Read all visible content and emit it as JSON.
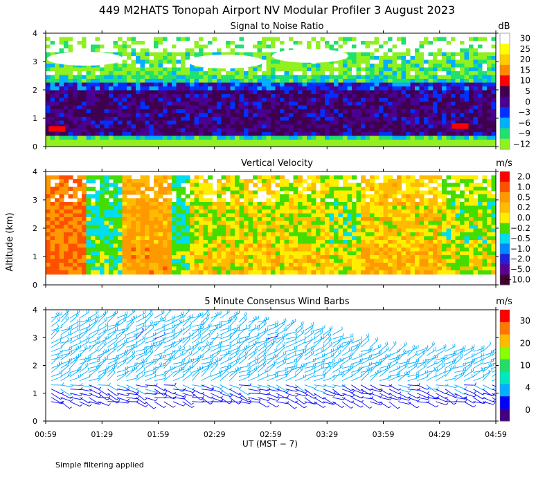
{
  "title": "449 M2HATS Tonopah Airport NV Modular Profiler  3 August 2023",
  "footnote": "Simple filtering applied",
  "shared": {
    "ylabel": "Altitude (km)",
    "xlabel": "UT  (MST − 7)",
    "xticks": [
      "00:59",
      "01:29",
      "01:59",
      "02:29",
      "02:59",
      "03:29",
      "03:59",
      "04:29",
      "04:59"
    ],
    "yticks": [
      "0",
      "1",
      "2",
      "3",
      "4"
    ],
    "xlim": [
      "00:59",
      "04:59"
    ],
    "ylim_km": [
      0,
      4
    ]
  },
  "chart_data": [
    {
      "type": "heatmap",
      "title": "Signal to Noise Ratio",
      "unit": "dB",
      "colorbar": {
        "labels": [
          "30",
          "25",
          "20",
          "15",
          "10",
          "5",
          "0",
          "−3",
          "−6",
          "−9",
          "−12"
        ],
        "colors": [
          "#ffffff",
          "#ffff00",
          "#ffcc00",
          "#ff8800",
          "#ff0000",
          "#400050",
          "#4a0090",
          "#0030ff",
          "#00b0ff",
          "#20e070",
          "#90f020"
        ]
      },
      "field": {
        "layers_km": [
          {
            "from": 0.0,
            "to": 0.25,
            "value_db": -12
          },
          {
            "from": 0.25,
            "to": 0.5,
            "value_db": -9
          },
          {
            "from": 0.5,
            "to": 2.0,
            "value_db": 3
          },
          {
            "from": 2.0,
            "to": 2.3,
            "value_db": -3
          },
          {
            "from": 2.3,
            "to": 2.6,
            "value_db": -9
          },
          {
            "from": 2.6,
            "to": 3.4,
            "value_db": -12
          },
          {
            "from": 3.4,
            "to": 4.0,
            "value_db": 30
          }
        ],
        "cloud_patches_km": [
          {
            "t": "01:20",
            "z": 3.1,
            "value_db": 30
          },
          {
            "t": "02:35",
            "z": 3.0,
            "value_db": 30
          },
          {
            "t": "03:20",
            "z": 3.2,
            "value_db": 30
          }
        ],
        "strong_echo_patches_km": [
          {
            "t": "01:05",
            "z": 0.6,
            "value_db": 10
          },
          {
            "t": "04:40",
            "z": 0.7,
            "value_db": 10
          }
        ]
      }
    },
    {
      "type": "heatmap",
      "title": "Vertical Velocity",
      "unit": "m/s",
      "colorbar": {
        "labels": [
          "2.0",
          "1.0",
          "0.5",
          "0.2",
          "0.0",
          "−0.2",
          "−0.5",
          "−1.0",
          "−2.0",
          "−5.0",
          "−10.0"
        ],
        "colors": [
          "#ff0000",
          "#ff5000",
          "#ff9900",
          "#ffbb00",
          "#ffee00",
          "#44dd00",
          "#00ddee",
          "#0088ff",
          "#2020dd",
          "#5a0090",
          "#400030"
        ]
      },
      "field": {
        "layers_km": [
          {
            "from": 0.4,
            "to": 1.5,
            "value_ms": 0.5
          },
          {
            "from": 1.5,
            "to": 3.0,
            "value_ms": 0.0
          },
          {
            "from": 3.0,
            "to": 4.0,
            "value_ms": -0.2
          }
        ],
        "segments": [
          {
            "from": "00:59",
            "to": "01:20",
            "value_ms": 1.0
          },
          {
            "from": "01:20",
            "to": "01:39",
            "value_ms": -0.5
          },
          {
            "from": "01:39",
            "to": "02:05",
            "value_ms": 0.5
          },
          {
            "from": "02:05",
            "to": "02:15",
            "value_ms": -0.5
          },
          {
            "from": "02:15",
            "to": "03:30",
            "value_ms": 0.0
          },
          {
            "from": "03:30",
            "to": "03:45",
            "value_ms": -0.2
          },
          {
            "from": "03:45",
            "to": "04:30",
            "value_ms": 0.2
          },
          {
            "from": "04:30",
            "to": "04:59",
            "value_ms": -0.2
          }
        ]
      }
    },
    {
      "type": "wind_barbs",
      "title": "5 Minute Consensus Wind Barbs",
      "unit": "m/s",
      "colorbar": {
        "labels": [
          "30",
          "20",
          "10",
          "4",
          "0"
        ],
        "colors": [
          "#ff0000",
          "#ff7700",
          "#ffbb00",
          "#88ff00",
          "#22dd66",
          "#00e8c0",
          "#00b0ff",
          "#0000ff",
          "#400080"
        ]
      },
      "speed_by_height_km": [
        {
          "z": 0.8,
          "speed_ms": 3
        },
        {
          "z": 1.2,
          "speed_ms": 6
        },
        {
          "z": 1.8,
          "speed_ms": 9
        },
        {
          "z": 2.4,
          "speed_ms": 8
        },
        {
          "z": 3.0,
          "speed_ms": 7
        },
        {
          "z": 3.6,
          "speed_ms": 9
        }
      ],
      "coverage_top_km": [
        {
          "t": "00:59",
          "z": 3.8
        },
        {
          "t": "02:29",
          "z": 3.8
        },
        {
          "t": "03:29",
          "z": 3.2
        },
        {
          "t": "03:59",
          "z": 2.6
        },
        {
          "t": "04:59",
          "z": 2.5
        }
      ]
    }
  ]
}
